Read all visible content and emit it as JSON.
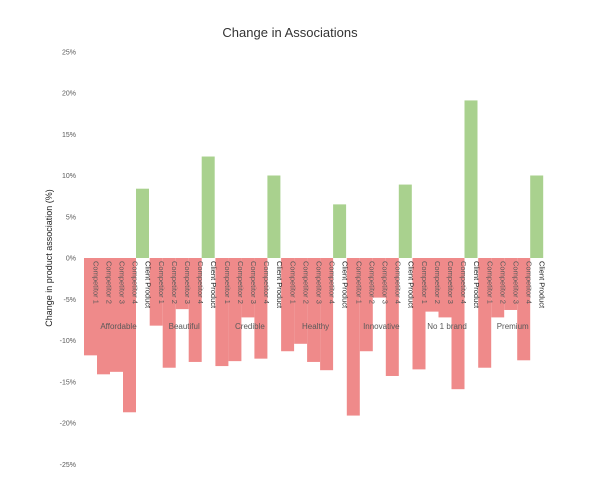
{
  "chart_data": {
    "type": "bar",
    "title": "Change in Associations",
    "ylabel": "Change in product association (%)",
    "xlabel": "",
    "ylim": [
      -25,
      25
    ],
    "yticks": [
      25,
      20,
      15,
      10,
      5,
      0,
      -5,
      -10,
      -15,
      -20,
      -25
    ],
    "ytick_labels": [
      "25%",
      "20%",
      "15%",
      "10%",
      "5%",
      "0%",
      "-5%",
      "-10%",
      "-15%",
      "-20%",
      "-25%"
    ],
    "grid": false,
    "legend": "none",
    "sub_labels": [
      "Competitor 1",
      "Competitor 2",
      "Competitor 3",
      "Competitor 4",
      "Client Product"
    ],
    "colors": {
      "negative": "#ef8a8a",
      "positive": "#a9d18e"
    },
    "groups": [
      {
        "name": "Affordable",
        "values": [
          -11.8,
          -14.1,
          -13.8,
          -18.7,
          8.4
        ]
      },
      {
        "name": "Beautiful",
        "values": [
          -8.2,
          -13.3,
          -6.2,
          -12.6,
          12.3
        ]
      },
      {
        "name": "Credible",
        "values": [
          -13.1,
          -12.5,
          -7.2,
          -12.2,
          10.0
        ]
      },
      {
        "name": "Healthy",
        "values": [
          -11.3,
          -10.4,
          -12.6,
          -13.6,
          6.5
        ]
      },
      {
        "name": "Innovative",
        "values": [
          -19.1,
          -11.3,
          -4.8,
          -14.3,
          8.9
        ]
      },
      {
        "name": "No 1 brand",
        "values": [
          -13.5,
          -6.5,
          -7.2,
          -15.9,
          19.1
        ]
      },
      {
        "name": "Premium",
        "values": [
          -13.3,
          -7.2,
          -6.3,
          -12.4,
          10.0
        ]
      }
    ]
  }
}
